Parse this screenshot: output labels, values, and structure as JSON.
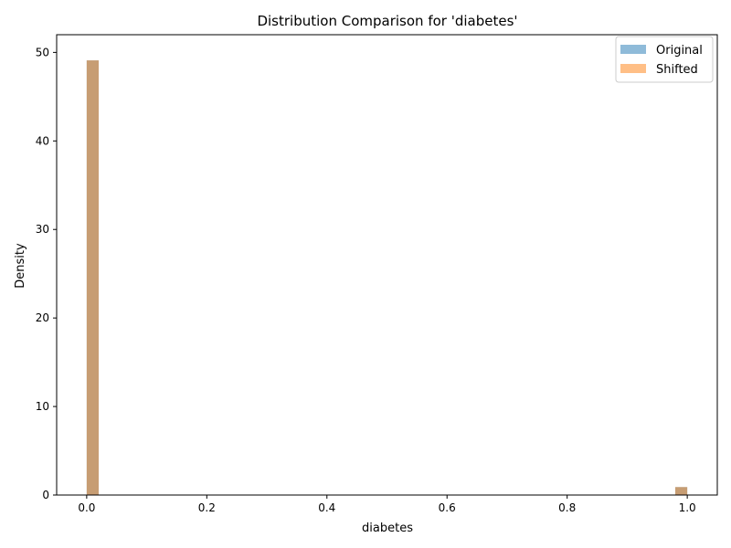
{
  "chart_data": {
    "type": "histogram",
    "title": "Distribution Comparison for 'diabetes'",
    "xlabel": "diabetes",
    "ylabel": "Density",
    "xlim": [
      -0.05,
      1.05
    ],
    "ylim": [
      0,
      52
    ],
    "x_ticks": [
      0.0,
      0.2,
      0.4,
      0.6,
      0.8,
      1.0
    ],
    "x_tick_labels": [
      "0.0",
      "0.2",
      "0.4",
      "0.6",
      "0.8",
      "1.0"
    ],
    "y_ticks": [
      0,
      10,
      20,
      30,
      40,
      50
    ],
    "y_tick_labels": [
      "0",
      "10",
      "20",
      "30",
      "40",
      "50"
    ],
    "grid": false,
    "legend_position": "top-right",
    "series": [
      {
        "name": "Original",
        "color": "#1f77b4",
        "opacity": 0.5,
        "bins": [
          {
            "x0": 0.0,
            "x1": 0.02,
            "density": 49.1
          },
          {
            "x0": 0.98,
            "x1": 1.0,
            "density": 0.9
          }
        ]
      },
      {
        "name": "Shifted",
        "color": "#ff7f0e",
        "opacity": 0.5,
        "bins": [
          {
            "x0": 0.0,
            "x1": 0.02,
            "density": 49.1
          },
          {
            "x0": 0.98,
            "x1": 1.0,
            "density": 0.9
          }
        ]
      }
    ]
  }
}
